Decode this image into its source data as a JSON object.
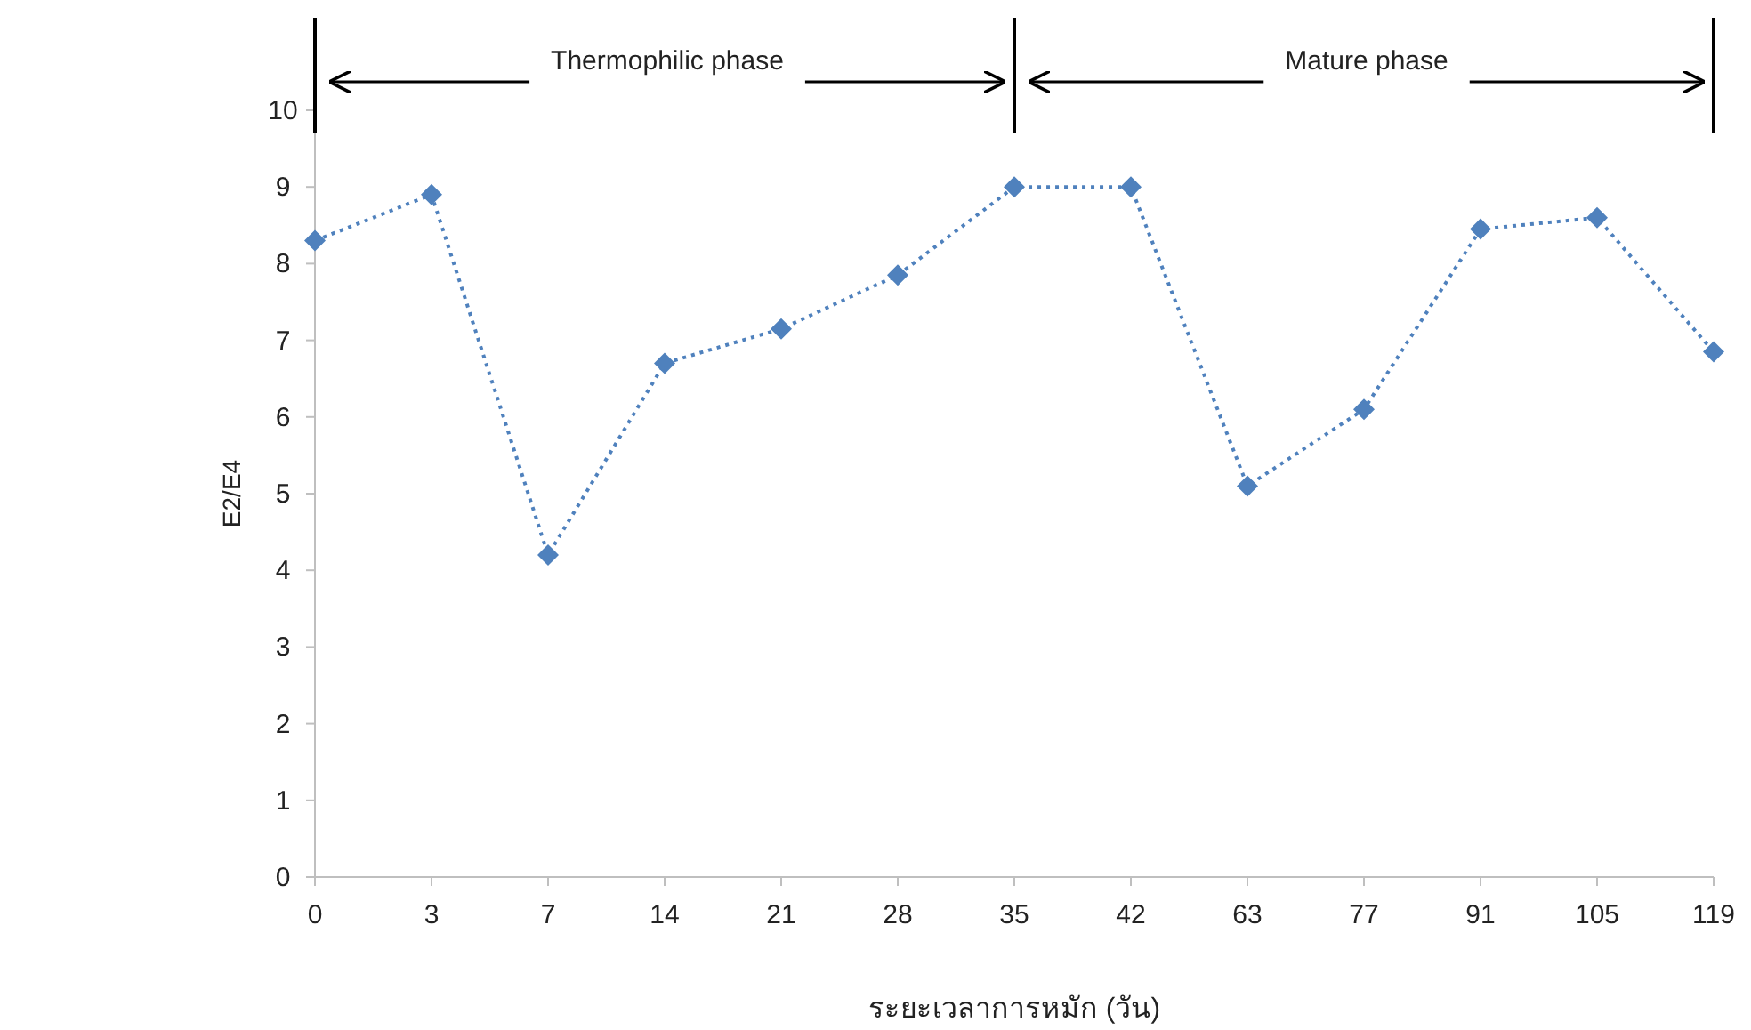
{
  "chart_data": {
    "type": "line",
    "categories": [
      "0",
      "3",
      "7",
      "14",
      "21",
      "28",
      "35",
      "42",
      "63",
      "77",
      "91",
      "105",
      "119"
    ],
    "series": [
      {
        "color": "#4f81bd",
        "values": [
          8.3,
          8.9,
          4.2,
          6.7,
          7.15,
          7.85,
          9.0,
          9.0,
          5.1,
          6.1,
          8.45,
          8.6,
          6.85
        ]
      }
    ],
    "ylim": [
      0,
      10
    ],
    "yticks": [
      0,
      1,
      2,
      3,
      4,
      5,
      6,
      7,
      8,
      9,
      10
    ],
    "xlabel": "ระยะเวลาการหมัก (วัน)",
    "ylabel": "E2/E4",
    "marker": "diamond",
    "line_style": "dotted",
    "grid": false,
    "annotations": [
      "Thermophilic phase",
      "Mature phase"
    ]
  }
}
